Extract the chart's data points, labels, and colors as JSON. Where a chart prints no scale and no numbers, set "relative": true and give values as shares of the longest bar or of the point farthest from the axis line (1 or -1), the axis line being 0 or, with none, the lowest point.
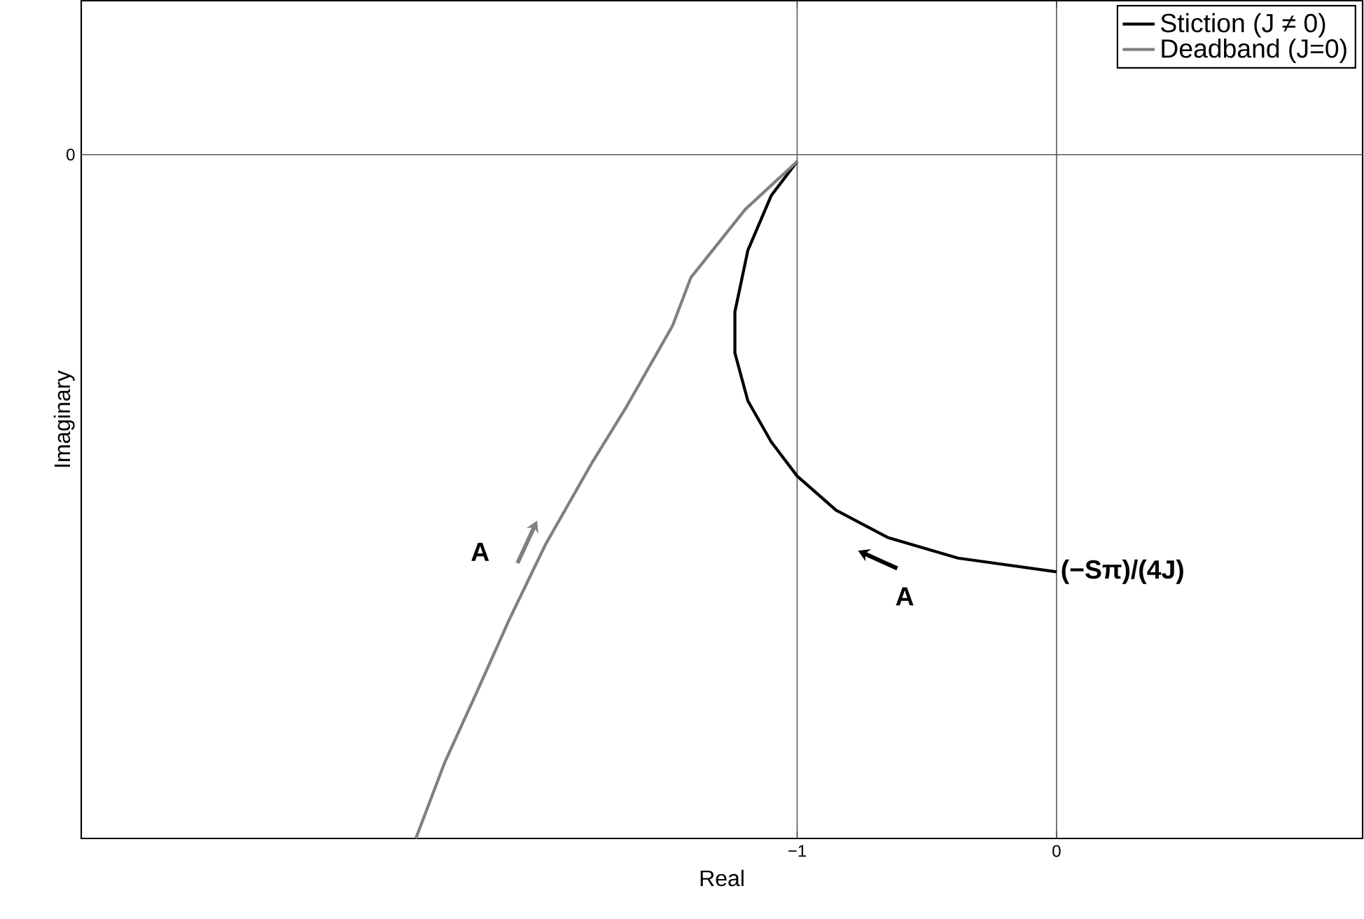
{
  "chart_data": {
    "type": "line",
    "xlabel": "Real",
    "ylabel": "Imaginary",
    "relative": true,
    "xlim": [
      -3.76,
      1.18
    ],
    "xticks": [
      {
        "value": -1,
        "label": "−1"
      },
      0
    ],
    "grid": true,
    "legend": "top right",
    "line_style": "solid",
    "marker": "none",
    "series": [
      {
        "name": "Stiction (J ≠ 0)",
        "color": "#000000",
        "x": [
          -1.0,
          -1.1,
          -1.19,
          -1.24,
          -1.24,
          -1.19,
          -1.1,
          -1.0,
          -0.85,
          -0.65,
          -0.38,
          0.0
        ],
        "values": [
          -0.01,
          -0.06,
          -0.14,
          -0.23,
          -0.29,
          -0.36,
          -0.42,
          -0.47,
          -0.52,
          -0.56,
          -0.59,
          -0.61
        ]
      },
      {
        "name": "Deadband (J=0)",
        "color": "#808080",
        "x": [
          -1.0,
          -1.2,
          -1.41,
          -1.48,
          -1.66,
          -1.79,
          -1.97,
          -2.11,
          -2.24,
          -2.36,
          -2.47
        ],
        "values": [
          -0.01,
          -0.08,
          -0.18,
          -0.25,
          -0.37,
          -0.45,
          -0.57,
          -0.68,
          -0.79,
          -0.89,
          -1.0
        ]
      }
    ],
    "annotations": [
      "A",
      "A",
      "(−Sπ)/(4J)",
      "0"
    ]
  }
}
